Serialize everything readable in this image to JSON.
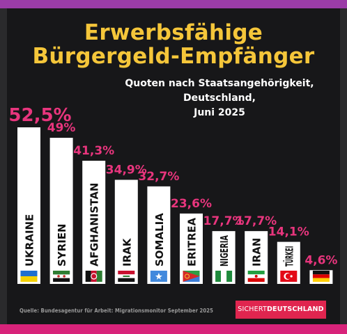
{
  "title_line1": "Erwerbsfähige",
  "title_line2": "Bürgergeld-Empfänger",
  "subtitle_line1": "Quoten nach Staatsangehörigkeit,",
  "subtitle_line2": "Deutschland,",
  "subtitle_line3": "Juni 2025",
  "source": "Quelle: Bundesagentur für Arbeit: Migrationsmonitor September 2025",
  "logo_part1": "SICHERT",
  "logo_part2": "DEUTSCHLAND",
  "colors": {
    "title": "#f5c63a",
    "value_label": "#e8357d",
    "bar": "#ffffff",
    "background": "#171719"
  },
  "chart_data": {
    "type": "bar",
    "categories": [
      "UKRAINE",
      "SYRIEN",
      "AFGHANISTAN",
      "IRAK",
      "SOMALIA",
      "ERITREA",
      "NIGERIA",
      "IRAN",
      "TÜRKEI",
      ""
    ],
    "values": [
      52.5,
      49,
      41.3,
      34.9,
      32.7,
      23.6,
      17.7,
      17.7,
      14.1,
      4.6
    ],
    "value_labels": [
      "52,5%",
      "49%",
      "41,3%",
      "34,9%",
      "32,7%",
      "23,6%",
      "17,7%",
      "17,7%",
      "14,1%",
      "4,6%"
    ],
    "flags": [
      "ukraine-flag",
      "syria-flag",
      "afghanistan-flag",
      "iraq-flag",
      "somalia-flag",
      "eritrea-flag",
      "nigeria-flag",
      "iran-flag",
      "turkey-flag",
      "germany-flag"
    ],
    "ylim": [
      0,
      52.5
    ],
    "grid": false,
    "legend": "none"
  }
}
